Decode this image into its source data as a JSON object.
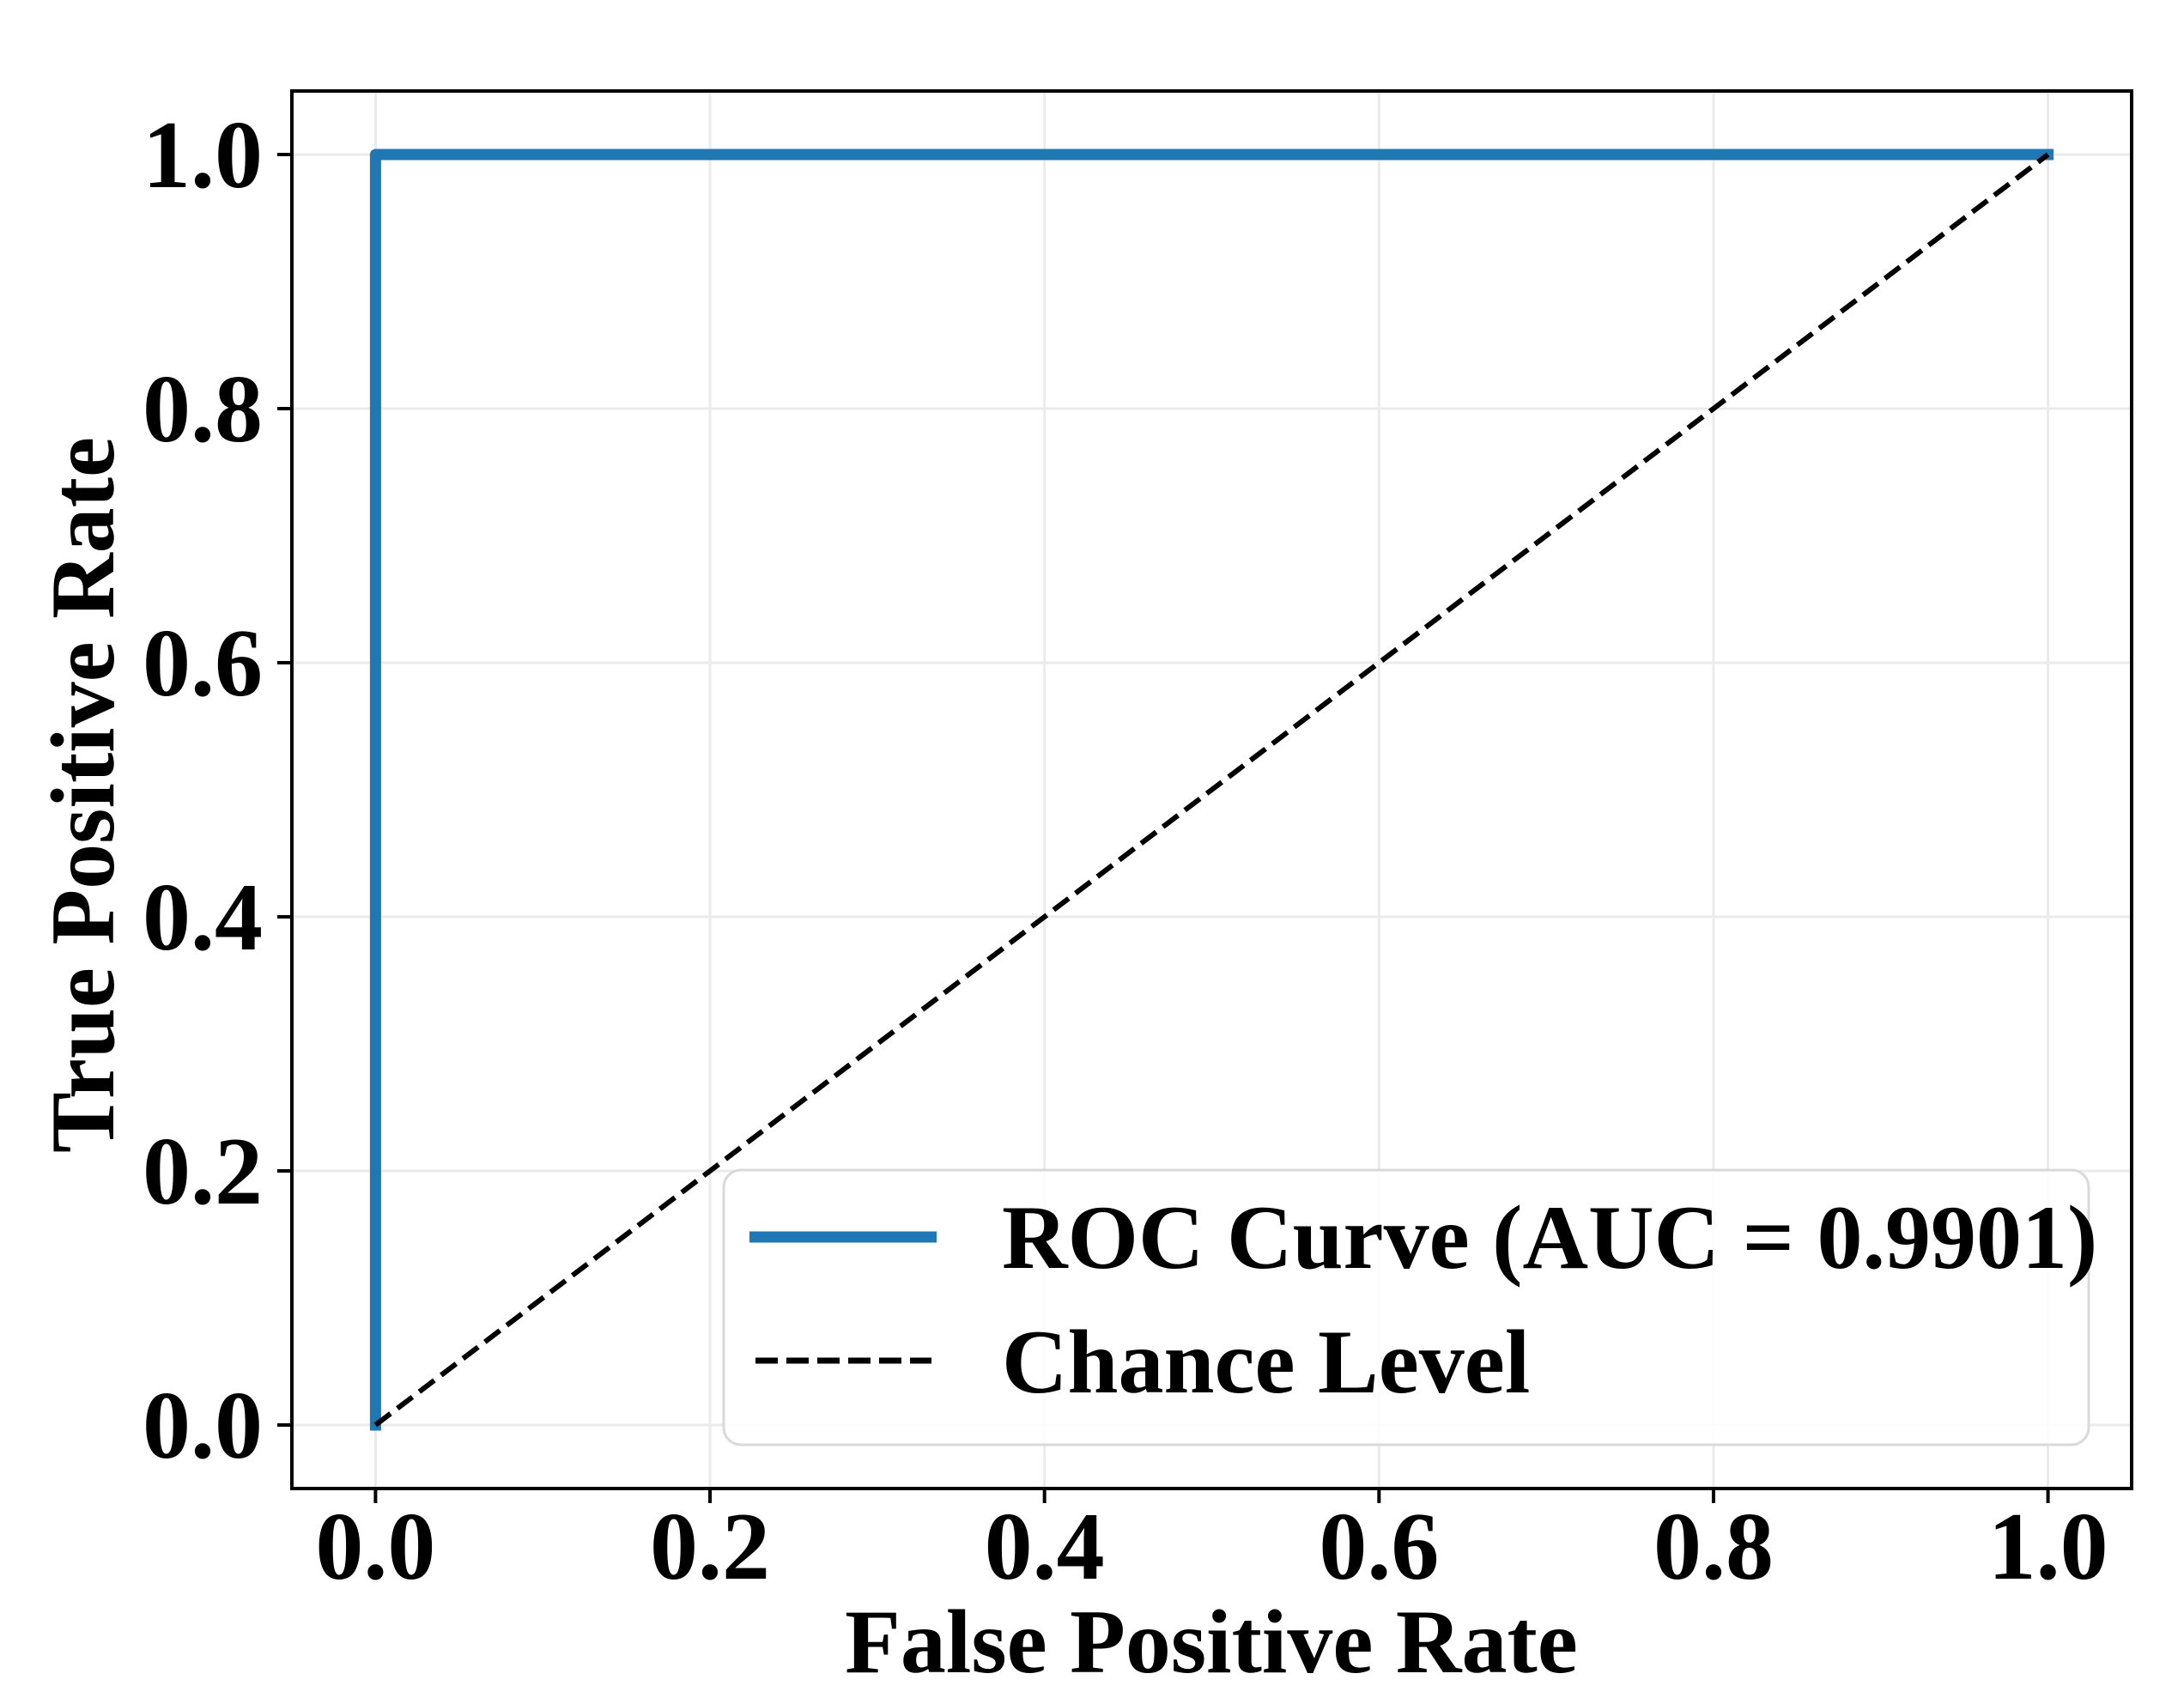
{
  "chart_data": {
    "type": "line",
    "title": "",
    "xlabel": "False Positive Rate",
    "ylabel": "True Positive Rate",
    "xlim": [
      -0.05,
      1.05
    ],
    "ylim": [
      -0.05,
      1.05
    ],
    "grid": true,
    "x_ticks": [
      0.0,
      0.2,
      0.4,
      0.6,
      0.8,
      1.0
    ],
    "x_tick_labels": [
      "0.0",
      "0.2",
      "0.4",
      "0.6",
      "0.8",
      "1.0"
    ],
    "y_ticks": [
      0.0,
      0.2,
      0.4,
      0.6,
      0.8,
      1.0
    ],
    "y_tick_labels": [
      "0.0",
      "0.2",
      "0.4",
      "0.6",
      "0.8",
      "1.0"
    ],
    "series": [
      {
        "name": "ROC Curve (AUC = 0.9901)",
        "style": "solid",
        "color": "#1f77b4",
        "x": [
          0.0,
          0.0,
          1.0
        ],
        "y": [
          0.0,
          1.0,
          1.0
        ]
      },
      {
        "name": "Chance Level",
        "style": "dashed",
        "color": "#000000",
        "x": [
          0.0,
          1.0
        ],
        "y": [
          0.0,
          1.0
        ]
      }
    ],
    "legend": {
      "position": "lower-right",
      "entries": [
        "ROC Curve (AUC = 0.9901)",
        "Chance Level"
      ]
    },
    "annotations": {
      "auc": 0.9901
    }
  },
  "colors": {
    "roc": "#1f77b4",
    "chance": "#000000",
    "grid": "#ebebeb",
    "legend_border": "#d9d9d9"
  }
}
